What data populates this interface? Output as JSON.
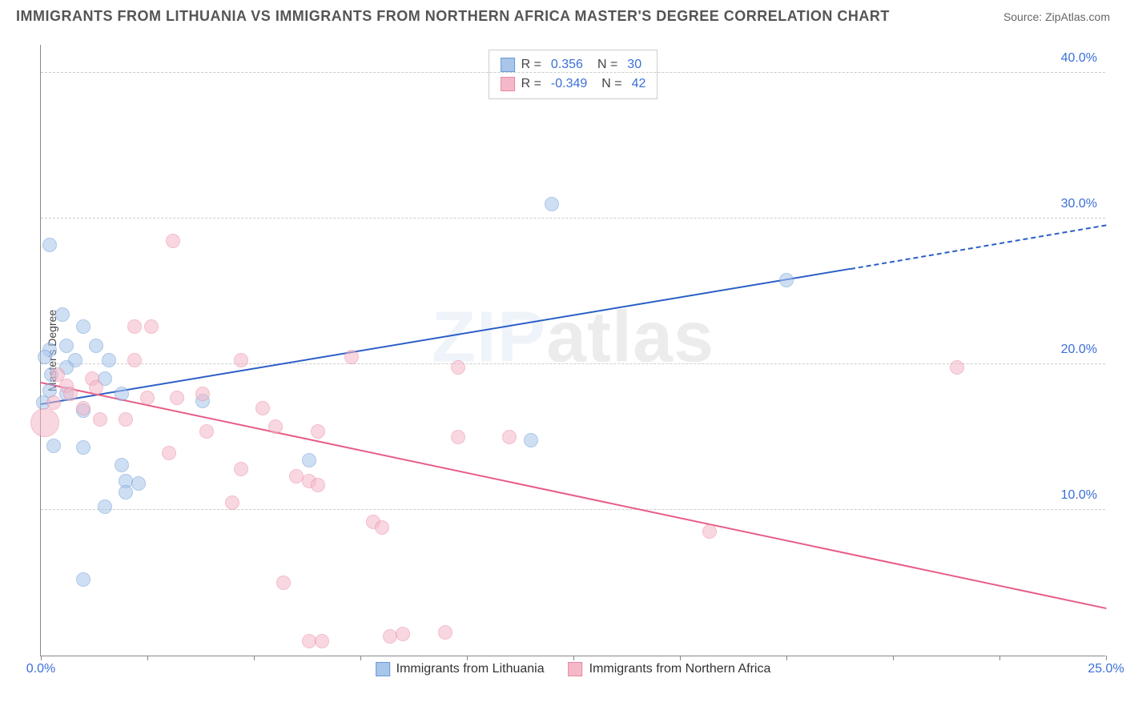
{
  "header": {
    "title": "IMMIGRANTS FROM LITHUANIA VS IMMIGRANTS FROM NORTHERN AFRICA MASTER'S DEGREE CORRELATION CHART",
    "source": "Source: ZipAtlas.com"
  },
  "chart": {
    "type": "scatter",
    "ylabel": "Master's Degree",
    "background_color": "#ffffff",
    "grid_color": "#cccccc",
    "axis_color": "#888888",
    "xlim": [
      0,
      25
    ],
    "ylim": [
      0,
      42
    ],
    "xticks": [
      0,
      2.5,
      5,
      7.5,
      10,
      12.5,
      15,
      17.5,
      20,
      22.5,
      25
    ],
    "xtick_labels": {
      "0": "0.0%",
      "25": "25.0%"
    },
    "yticks": [
      10,
      20,
      30,
      40
    ],
    "ytick_labels": {
      "10": "10.0%",
      "20": "20.0%",
      "30": "30.0%",
      "40": "40.0%"
    },
    "tick_label_color": "#3b6fd8",
    "tick_label_fontsize": 16,
    "axis_label_color": "#444444",
    "axis_label_fontsize": 14,
    "watermark": {
      "part1": "ZIP",
      "part2": "atlas",
      "color1": "#2a5fc7",
      "color2": "#000000",
      "opacity": 0.07,
      "fontsize": 90
    },
    "series": [
      {
        "name": "Immigrants from Lithuania",
        "fill_color": "#a8c5ea",
        "stroke_color": "#6a9ad8",
        "fill_opacity": 0.55,
        "marker_radius": 9,
        "R": "0.356",
        "N": "30",
        "trend": {
          "x1": 0,
          "y1": 17.2,
          "x2": 19.0,
          "y2": 26.5,
          "color": "#2a5fc7",
          "width": 2,
          "dash_to_x": 25,
          "dash_to_y": 29.5
        },
        "points": [
          {
            "x": 0.2,
            "y": 28.2
          },
          {
            "x": 0.5,
            "y": 23.4
          },
          {
            "x": 1.0,
            "y": 22.6
          },
          {
            "x": 0.6,
            "y": 21.3
          },
          {
            "x": 1.3,
            "y": 21.3
          },
          {
            "x": 0.2,
            "y": 21.0
          },
          {
            "x": 0.1,
            "y": 20.5
          },
          {
            "x": 0.25,
            "y": 19.3
          },
          {
            "x": 0.8,
            "y": 20.3
          },
          {
            "x": 1.6,
            "y": 20.3
          },
          {
            "x": 1.5,
            "y": 19.0
          },
          {
            "x": 0.2,
            "y": 18.2
          },
          {
            "x": 0.6,
            "y": 18.0
          },
          {
            "x": 0.05,
            "y": 17.4
          },
          {
            "x": 3.8,
            "y": 17.5
          },
          {
            "x": 1.0,
            "y": 16.8
          },
          {
            "x": 1.0,
            "y": 14.3
          },
          {
            "x": 0.3,
            "y": 14.4
          },
          {
            "x": 1.9,
            "y": 13.1
          },
          {
            "x": 2.0,
            "y": 12.0
          },
          {
            "x": 2.0,
            "y": 11.2
          },
          {
            "x": 2.3,
            "y": 11.8
          },
          {
            "x": 1.5,
            "y": 10.2
          },
          {
            "x": 6.3,
            "y": 13.4
          },
          {
            "x": 11.5,
            "y": 14.8
          },
          {
            "x": 12.0,
            "y": 31.0
          },
          {
            "x": 17.5,
            "y": 25.8
          },
          {
            "x": 1.0,
            "y": 5.2
          },
          {
            "x": 0.6,
            "y": 19.8
          },
          {
            "x": 1.9,
            "y": 18.0
          }
        ]
      },
      {
        "name": "Immigrants from Northern Africa",
        "fill_color": "#f5b8c8",
        "stroke_color": "#e88aa3",
        "fill_opacity": 0.55,
        "marker_radius": 9,
        "R": "-0.349",
        "N": "42",
        "trend": {
          "x1": 0,
          "y1": 18.7,
          "x2": 25,
          "y2": 3.2,
          "color": "#e75d86",
          "width": 2
        },
        "points": [
          {
            "x": 3.1,
            "y": 28.5
          },
          {
            "x": 2.2,
            "y": 22.6
          },
          {
            "x": 2.6,
            "y": 22.6
          },
          {
            "x": 2.2,
            "y": 20.3
          },
          {
            "x": 4.7,
            "y": 20.3
          },
          {
            "x": 7.3,
            "y": 20.5
          },
          {
            "x": 9.8,
            "y": 19.8
          },
          {
            "x": 21.5,
            "y": 19.8
          },
          {
            "x": 1.2,
            "y": 19.0
          },
          {
            "x": 0.6,
            "y": 18.5
          },
          {
            "x": 0.7,
            "y": 18.0
          },
          {
            "x": 1.3,
            "y": 18.4
          },
          {
            "x": 0.3,
            "y": 17.4
          },
          {
            "x": 2.5,
            "y": 17.7
          },
          {
            "x": 3.2,
            "y": 17.7
          },
          {
            "x": 3.8,
            "y": 18.0
          },
          {
            "x": 5.2,
            "y": 17.0
          },
          {
            "x": 0.1,
            "y": 16.0,
            "r": 18
          },
          {
            "x": 1.4,
            "y": 16.2
          },
          {
            "x": 2.0,
            "y": 16.2
          },
          {
            "x": 3.9,
            "y": 15.4
          },
          {
            "x": 5.5,
            "y": 15.7
          },
          {
            "x": 6.5,
            "y": 15.4
          },
          {
            "x": 9.8,
            "y": 15.0
          },
          {
            "x": 11.0,
            "y": 15.0
          },
          {
            "x": 3.0,
            "y": 13.9
          },
          {
            "x": 4.7,
            "y": 12.8
          },
          {
            "x": 6.0,
            "y": 12.3
          },
          {
            "x": 6.3,
            "y": 12.0
          },
          {
            "x": 6.5,
            "y": 11.7
          },
          {
            "x": 4.5,
            "y": 10.5
          },
          {
            "x": 7.8,
            "y": 9.2
          },
          {
            "x": 8.0,
            "y": 8.8
          },
          {
            "x": 15.7,
            "y": 8.5
          },
          {
            "x": 5.7,
            "y": 5.0
          },
          {
            "x": 6.3,
            "y": 1.0
          },
          {
            "x": 6.6,
            "y": 1.0
          },
          {
            "x": 8.2,
            "y": 1.3
          },
          {
            "x": 8.5,
            "y": 1.5
          },
          {
            "x": 9.5,
            "y": 1.6
          },
          {
            "x": 0.4,
            "y": 19.3
          },
          {
            "x": 1.0,
            "y": 17.0
          }
        ]
      }
    ],
    "legend_bottom": [
      {
        "swatch_fill": "#a8c5ea",
        "swatch_stroke": "#6a9ad8",
        "label": "Immigrants from Lithuania"
      },
      {
        "swatch_fill": "#f5b8c8",
        "swatch_stroke": "#e88aa3",
        "label": "Immigrants from Northern Africa"
      }
    ]
  }
}
